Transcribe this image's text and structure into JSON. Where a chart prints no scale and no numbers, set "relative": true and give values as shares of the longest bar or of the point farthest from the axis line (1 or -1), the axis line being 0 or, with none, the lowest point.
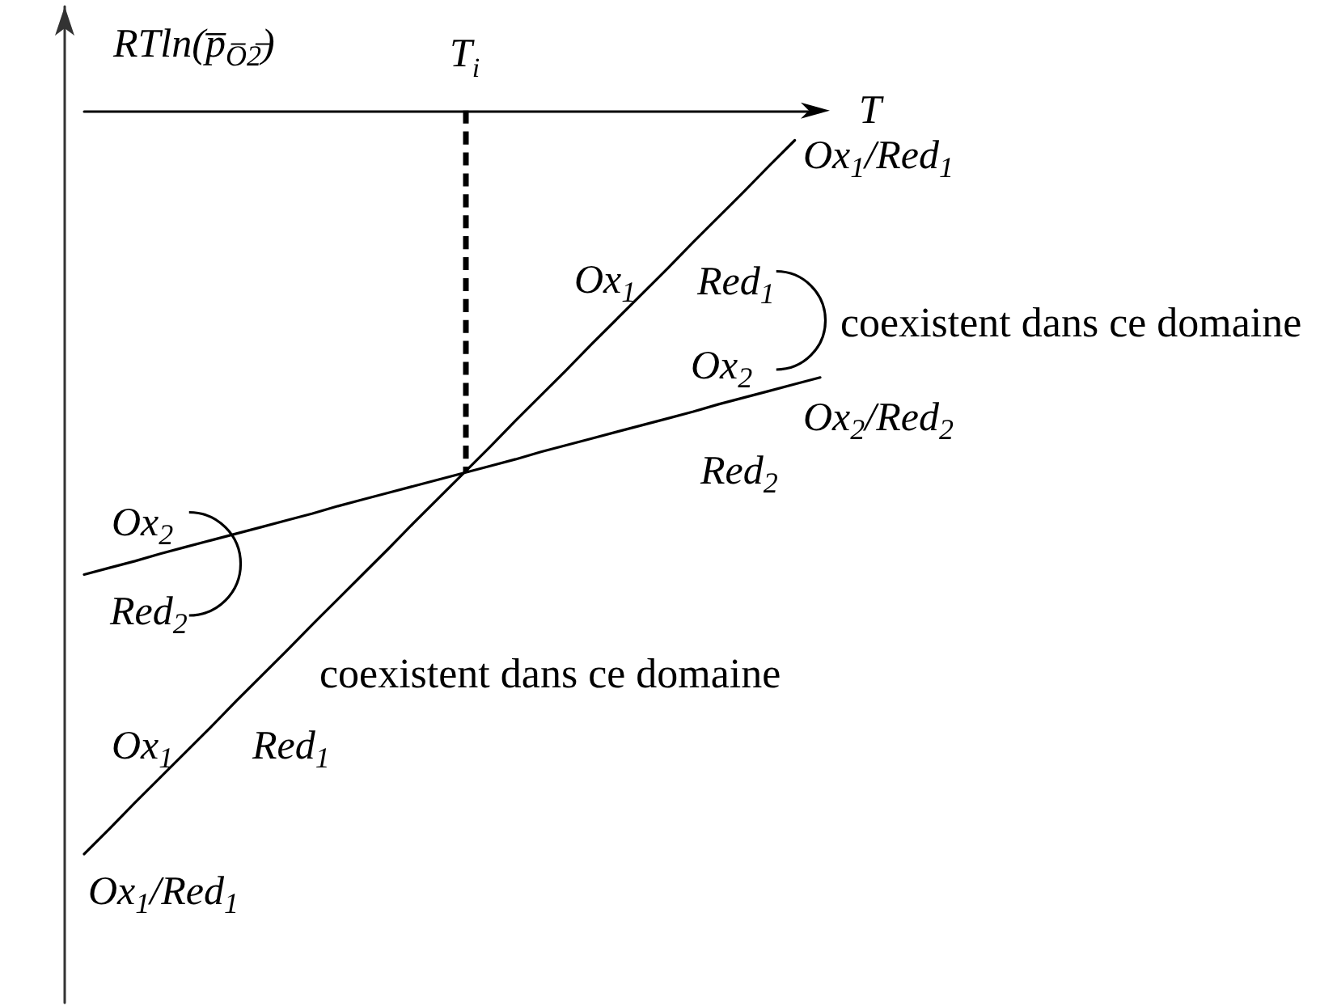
{
  "chart_data": {
    "type": "line",
    "relative": true,
    "xlabel": "T",
    "ylabel": "RTln(p̅$_{O̅2̅}$)",
    "marker": "none",
    "categories": [
      null,
      null,
      null,
      null,
      null,
      null,
      null,
      null,
      null,
      null,
      null,
      null,
      null,
      null,
      null,
      null,
      null,
      null,
      null,
      null,
      null,
      null,
      null,
      null,
      null,
      null,
      null,
      null,
      null,
      null
    ],
    "series": [
      {
        "color": "#000000",
        "values": [
          -1,
          -0.966,
          -0.931,
          -0.897,
          -0.863,
          -0.829,
          -0.794,
          -0.76,
          -0.726,
          -0.691,
          -0.657,
          -0.623,
          -0.589,
          -0.554,
          -0.52,
          -0.486,
          -0.452,
          -0.417,
          -0.383,
          -0.349,
          -0.314,
          -0.28,
          -0.246,
          -0.212,
          -0.177,
          -0.143,
          -0.109,
          -0.074,
          -0.04,
          null
        ]
      },
      {
        "color": "#000000",
        "values": [
          -0.624,
          -0.615,
          -0.606,
          -0.596,
          -0.587,
          -0.578,
          -0.569,
          -0.56,
          -0.551,
          -0.542,
          -0.532,
          -0.523,
          -0.514,
          -0.505,
          -0.496,
          -0.487,
          -0.478,
          -0.469,
          -0.459,
          -0.45,
          -0.441,
          -0.432,
          -0.423,
          -0.414,
          -0.405,
          -0.395,
          -0.386,
          -0.377,
          -0.368,
          -0.359
        ]
      }
    ],
    "ref_lines": [
      {
        "axis": "x",
        "label": "T$_{i}$",
        "color": "#000000",
        "line_style": "dashed"
      }
    ],
    "annotations": [
      "Ox$_{1}$/Red$_{1}$",
      "Ox$_{1}$",
      "Red$_{1}$",
      "coexistent dans ce domaine",
      "Ox$_{2}$",
      "Ox$_{2}$/Red$_{2}$",
      "Red$_{2}$",
      "Ox$_{2}$",
      "Red$_{2}$",
      "coexistent dans ce domaine",
      "Ox$_{1}$",
      "Red$_{1}$",
      "Ox$_{1}$/Red$_{1}$"
    ]
  }
}
